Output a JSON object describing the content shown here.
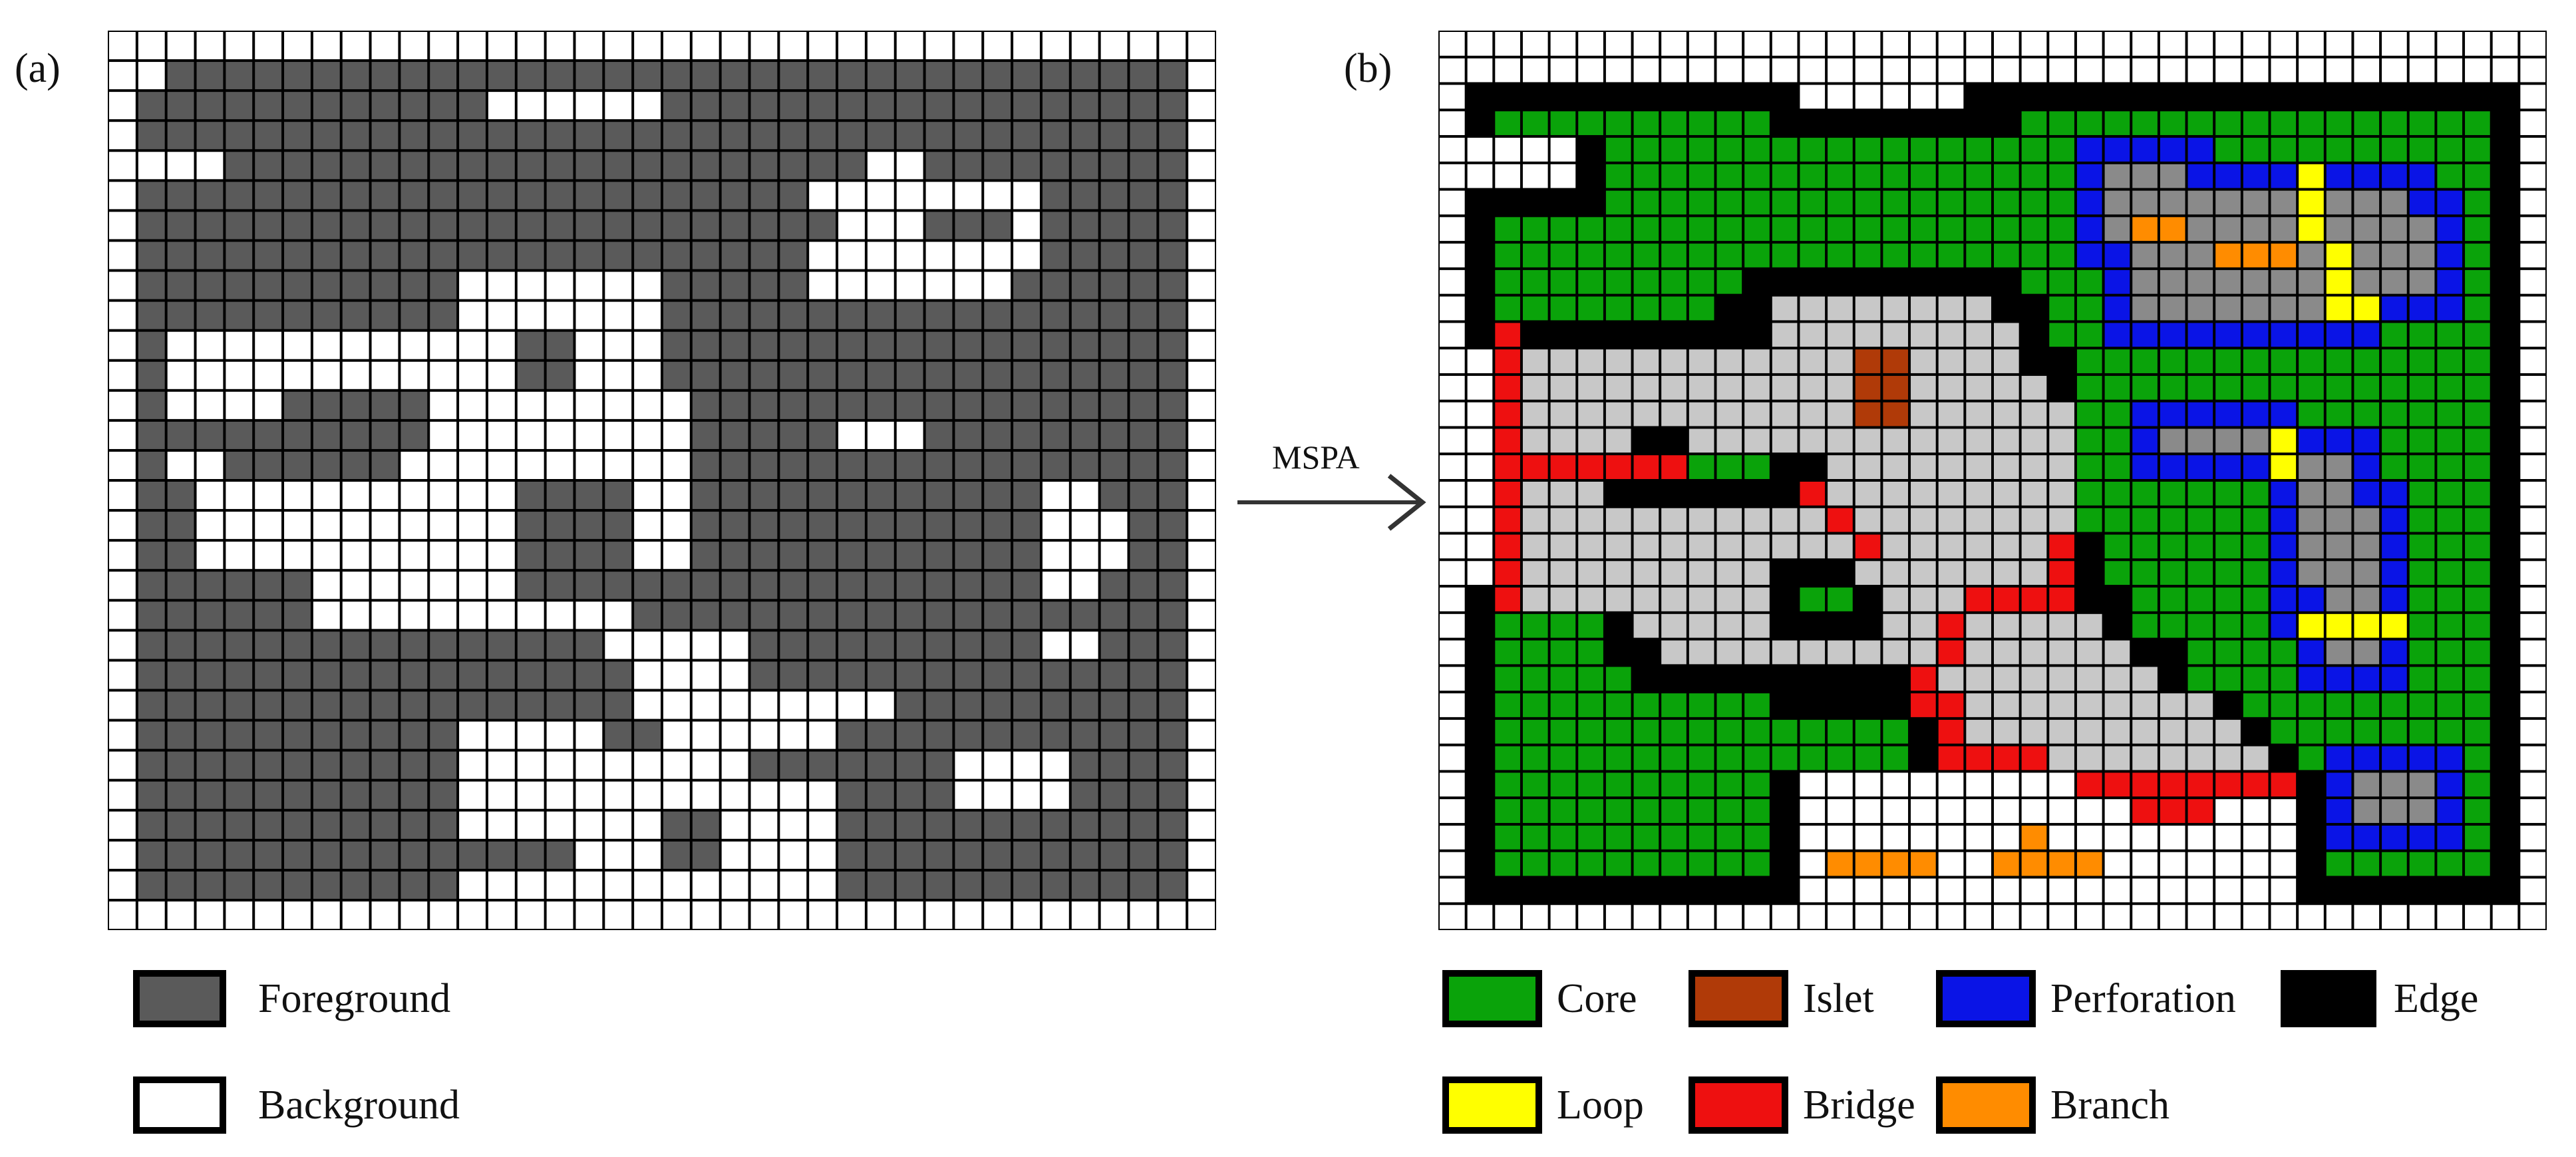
{
  "panel_a": {
    "label": "(a)",
    "legend": [
      {
        "key": "F",
        "text": "Foreground",
        "color": "#5a5a5a"
      },
      {
        "key": "B",
        "text": "Background",
        "color": "#ffffff"
      }
    ],
    "grid": [
      "WWWWWWWWWWWWWWWWWWWWWWWWWWWWWWWWWWWWWW",
      "WWFFFFFFFFFFFFFFFFFFFFFFFFFFFFFFFFFFFW",
      "WFFFFFFFFFFFFWWWWWWFFFFFFFFFFFFFFFFFFW",
      "WFFFFFFFFFFFFFFFFFFFFFFFFFFFFFFFFFFFFW",
      "WWWWFFFFFFFFFFFFFFFFFFFFFFWWFFFFFFFFFW",
      "WFFFFFFFFFFFFFFFFFFFFFFFWWWWWWWWFFFFFW",
      "WFFFFFFFFFFFFFFFFFFFFFFFFWWWFFFWFFFFFW",
      "WFFFFFFFFFFFFFFFFFFFFFFFWWWWWWWWFFFFFW",
      "WFFFFFFFFFFFWWWWWWWFFFFFWWWWWWWFFFFFFW",
      "WFFFFFFFFFFFWWWWWWWFFFFFFFFFFFFFFFFFFW",
      "WFWWWWWWWWWWWWFFWWWFFFFFFFFFFFFFFFFFFW",
      "WFWWWWWWWWWWWWFFWWWFFFFFFFFFFFFFFFFFFW",
      "WFWWWWFFFFFWWWWWWWWWFFFFFFFFFFFFFFFFFW",
      "WFFFFFFFFFFWWWWWWWWWFFFFFWWWFFFFFFFFFW",
      "WFWWFFFFFFWWWWWWWWWWFFFFFFFFFFFFFFFFFW",
      "WFFWWWWWWWWWWWFFFFWWFFFFFFFFFFFFWWFFFW",
      "WFFWWWWWWWWWWWFFFFWWFFFFFFFFFFFFWWWFFW",
      "WFFWWWWWWWWWWWFFFFWWFFFFFFFFFFFFWWWFFW",
      "WFFFFFFWWWWWWWFFFFFFFFFFFFFFFFFFWWFFFW",
      "WFFFFFFWWWWWWWWWWWFFFFFFFFFFFFFFFFFFFW",
      "WFFFFFFFFFFFFFFFFWWWWWFFFFFFFFFFWWFFFW",
      "WFFFFFFFFFFFFFFFFFWWWWFFFFFFFFFFFFFFFW",
      "WFFFFFFFFFFFFFFFFFWWWWWWWWWFFFFFFFFFFW",
      "WFFFFFFFFFFFWWWWWFFWWWWWWFFFFFFFFFFFFW",
      "WFFFFFFFFFFFWWWWWWWWWWFFFFFFFWWWWFFFFW",
      "WFFFFFFFFFFFWWWWWWWWWWWWWFFFFWWWWFFFFW",
      "WFFFFFFFFFFFWWWWWWWFFWWWWFFFFFFFFFFFFW",
      "WFFFFFFFFFFFFFFFWWWFFWWWWFFFFFFFFFFFFW",
      "WFFFFFFFFFFFWWWWWWWWWWWWWFFFFFFFFFFFFW",
      "WWWWWWWWWWWWWWWWWWWWWWWWWWWWWWWWWWWWWW"
    ]
  },
  "arrow": {
    "label": "MSPA"
  },
  "panel_b": {
    "label": "(b)",
    "legend": [
      {
        "key": "G",
        "text": "Core",
        "color": "#0aa30a"
      },
      {
        "key": "I",
        "text": "Islet",
        "color": "#b03a08"
      },
      {
        "key": "P",
        "text": "Perforation",
        "color": "#0a14e6"
      },
      {
        "key": "K",
        "text": "Edge",
        "color": "#000000"
      },
      {
        "key": "Y",
        "text": "Loop",
        "color": "#ffff00"
      },
      {
        "key": "R",
        "text": "Bridge",
        "color": "#ee1010"
      },
      {
        "key": "O",
        "text": "Branch",
        "color": "#ff8c00"
      }
    ],
    "extra_colors": {
      "W": "#ffffff",
      "L": "#c8c8c8",
      "D": "#8a8a8a"
    },
    "grid": [
      "WWWWWWWWWWWWWWWWWWWWWWWWWWWWWWWWWWWWWWWW",
      "WWWWWWWWWWWWWWWWWWWWWWWWWWWWWWWWWWWWWWWW",
      "WKKKKKKKKKKKKWWWWWWKKKKKKKKKKKKKKKKKKKKW",
      "WKGGGGGGGGGGKKKKKKKKKGGGGGGGGGGGGGGGGGKW",
      "WWWWWKGGGGGGGGGGGGGGGGGPPPPPGGGGGGGGGGKW",
      "WWWWWKGGGGGGGGGGGGGGGGGPDDDPPPPYPPPPGGKW",
      "WKKKKKGGGGGGGGGGGGGGGGGPDDDDDDDYDDDPPGKW",
      "WKGGGGGGGGGGGGGGGGGGGGGPDOODDDDYDDDDPGKW",
      "WKGGGGGGGGGGGGGGGGGGGGGPPDDDOOODYDDDPGKW",
      "WKGGGGGGGGGKKKKKKKKKKGGGPDDDDDDDYDDDPGKW",
      "WKGGGGGGGGKKLLLLLLLLKKGGPDDDDDDDYYPPPGKW",
      "WKRKKKKKKKKKLLLLLLLLLKGGPPPPPPPPPPGGGGKW",
      "WWRLLLLLLLLLLLLIILLLLKKGGGGGGGGGGGGGGGKW",
      "WWRLLLLLLLLLLLLIILLLLLKGGGGGGGGGGGGGGGKW",
      "WWRLLLLLLLLLLLLIILLLLLLGGPPPPPPGGGGGGGKW",
      "WWRLLLLKKLLLLLLLLLLLLLLGGPDDDDYPPPGGGGKW",
      "WWRRRRRRRGGGKKLLLLLLLLLGGPPPPPYDDPGGGGKW",
      "WWRLLLKKKKKKKRLLLLLLLLLGGGGGGGPDDPPGGGKW",
      "WWRLLLLLLLLLLLRLLLLLLLLGGGGGGGPDDDPGGGKW",
      "WWRLLLLLLLLLLLLRLLLLLLRKGGGGGGPDDDPGGGKW",
      "WWRLLLLLLLLLKKKLLLLLLLRKGGGGGGPDDDPGGGKW",
      "WKRLLLLLLLLLKGGKLLLRRRRKKGGGGGPPDDPGGGKW",
      "WKGGGGKLLLLLKKKKLLRLLLLLKGGGGGPYYYYGGGKW",
      "WKGGGGKKLLLLLLLLLLRLLLLLLKKGGGGPDDPGGGKW",
      "WKGGGGGKKKKKKKKKKRLLLLLLLLKGGGGPPPPGGGKW",
      "WKGGGGGGGGGGKKKKKRRLLLLLLLLLKGGGGGGGGGKW",
      "WKGGGGGGGGGGGGGGGKRLLLLLLLLLLKGGGGGGGGKW",
      "WKGGGGGGGGGGGGGGGKRRRRLLLLLLLLKGPPPPPGKW",
      "WKGGGGGGGGGGKWWWWWWWWWWRRRRRRRRKPDDDPGKW",
      "WKGGGGGGGGGGKWWWWWWWWWWWWRRRWWWKPDDDPGKW",
      "WKGGGGGGGGGGKWWWWWWWWOWWWWWWWWWKPPPPPGKW",
      "WKGGGGGGGGGGKWOOOOWWOOOOWWWWWWWKGGGGGGKW",
      "WKKKKKKKKKKKKWWWWWWWWWWWWWWWWWWKKKKKKKKW",
      "WWWWWWWWWWWWWWWWWWWWWWWWWWWWWWWWWWWWWWWW"
    ]
  }
}
